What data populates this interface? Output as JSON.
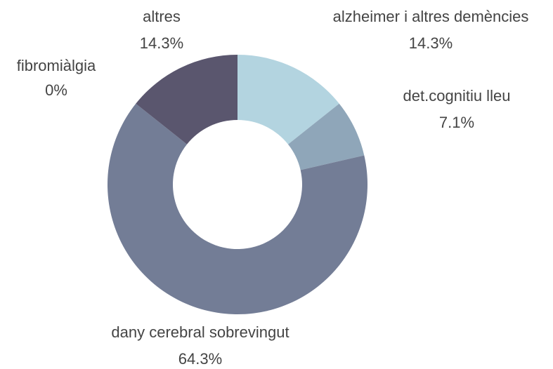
{
  "chart_data": {
    "type": "donut",
    "categories": [
      "alzheimer i altres demències",
      "det.cognitiu lleu",
      "dany cerebral sobrevingut",
      "fibromiàlgia",
      "altres"
    ],
    "values": [
      14.3,
      7.1,
      64.3,
      0,
      14.3
    ],
    "value_labels": [
      "14.3%",
      "7.1%",
      "64.3%",
      "0%",
      "14.3%"
    ],
    "colors": [
      "#b3d4e0",
      "#8fa6b9",
      "#737d96",
      "#66677f",
      "#5a566e"
    ]
  }
}
